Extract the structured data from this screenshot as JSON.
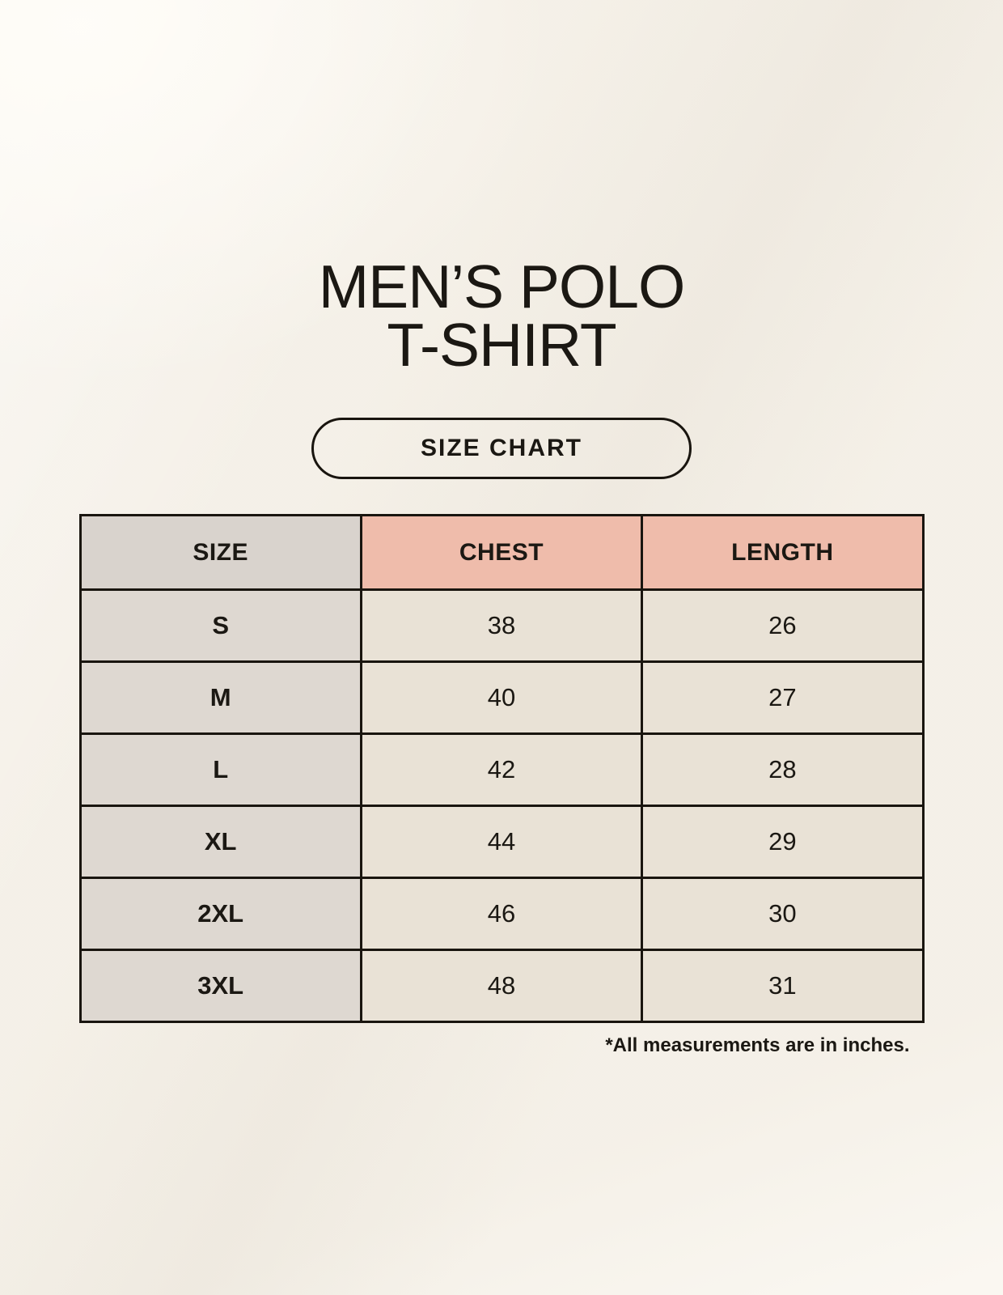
{
  "page": {
    "title_line1": "MEN’S POLO",
    "title_line2": "T-SHIRT",
    "badge_label": "SIZE CHART",
    "footnote": "*All measurements are in inches."
  },
  "colors": {
    "page_bg": "#f8f4ec",
    "header_label_bg": "#d9d3cd",
    "header_accent_bg": "#efbcab",
    "row_label_bg": "#ded8d1",
    "row_value_bg": "#e9e2d6",
    "table_border": "#19150f",
    "text_color": "#1b1813"
  },
  "chart_data": {
    "type": "table",
    "title": "MEN’S POLO T-SHIRT",
    "subtitle": "SIZE CHART",
    "columns": [
      "SIZE",
      "CHEST",
      "LENGTH"
    ],
    "rows": [
      {
        "size": "S",
        "chest": 38,
        "length": 26
      },
      {
        "size": "M",
        "chest": 40,
        "length": 27
      },
      {
        "size": "L",
        "chest": 42,
        "length": 28
      },
      {
        "size": "XL",
        "chest": 44,
        "length": 29
      },
      {
        "size": "2XL",
        "chest": 46,
        "length": 30
      },
      {
        "size": "3XL",
        "chest": 48,
        "length": 31
      }
    ],
    "units": "inches",
    "note": "*All measurements are in inches."
  }
}
